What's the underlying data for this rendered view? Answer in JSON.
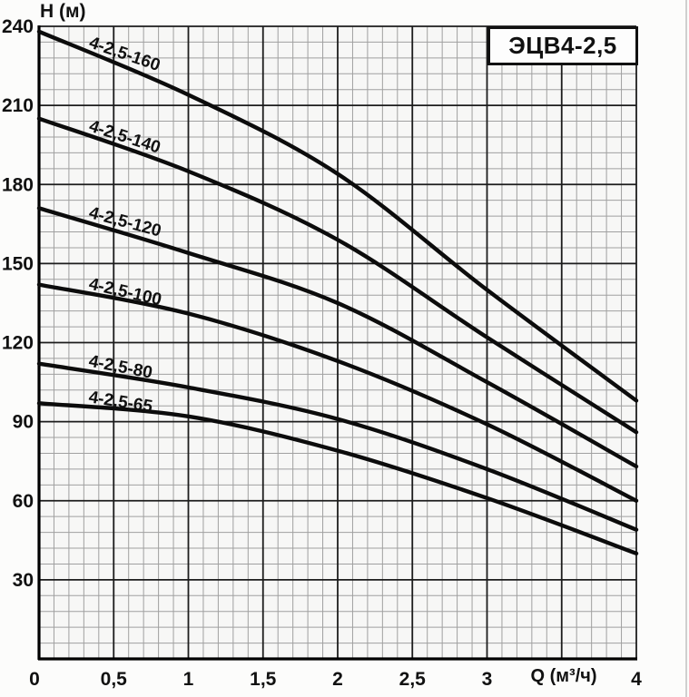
{
  "title_box": {
    "label": "ЭЦВ4-2,5"
  },
  "colors": {
    "curve": "#0c0c0c",
    "grid_minor": "#a0a0a0",
    "grid_major": "#1d1d1d",
    "axis": "#000000",
    "plot_background": "#f7f7f6",
    "text": "#111111"
  },
  "chart_data": {
    "type": "line",
    "title": "ЭЦВ4-2,5",
    "xlabel": "Q (м³/ч)",
    "ylabel": "Н (м)",
    "xlim": [
      0,
      4
    ],
    "ylim": [
      0,
      240
    ],
    "x_major_step": 0.5,
    "y_major_step": 30,
    "x_minor_step": 0.1,
    "y_minor_step": 6,
    "grid": true,
    "legend": "inline-curve-labels",
    "xlabel_at_q": 3.5,
    "x": [
      0,
      1,
      2,
      3,
      4
    ],
    "series": [
      {
        "name": "4-2,5-160",
        "values": [
          238,
          214,
          184,
          140,
          98
        ]
      },
      {
        "name": "4-2,5-140",
        "values": [
          205,
          185,
          159,
          122,
          86
        ]
      },
      {
        "name": "4-2,5-120",
        "values": [
          171,
          154,
          135,
          105,
          73
        ]
      },
      {
        "name": "4-2,5-100",
        "values": [
          142,
          131,
          113,
          89,
          60
        ]
      },
      {
        "name": "4-2,5-80",
        "values": [
          112,
          103,
          91,
          72,
          49
        ]
      },
      {
        "name": "4-2,5-65",
        "values": [
          97,
          92,
          79,
          61,
          40
        ]
      }
    ],
    "y_ticks": [
      {
        "value": 240,
        "label": "240"
      },
      {
        "value": 210,
        "label": "210"
      },
      {
        "value": 180,
        "label": "180"
      },
      {
        "value": 150,
        "label": "150"
      },
      {
        "value": 120,
        "label": "120"
      },
      {
        "value": 90,
        "label": "90"
      },
      {
        "value": 60,
        "label": "60"
      },
      {
        "value": 30,
        "label": "30"
      }
    ],
    "x_ticks": [
      {
        "value": 0,
        "label": "0"
      },
      {
        "value": 0.5,
        "label": "0,5"
      },
      {
        "value": 1,
        "label": "1"
      },
      {
        "value": 1.5,
        "label": "1,5"
      },
      {
        "value": 2,
        "label": "2"
      },
      {
        "value": 2.5,
        "label": "2,5"
      },
      {
        "value": 3,
        "label": "3"
      },
      {
        "value": 4,
        "label": "4"
      }
    ]
  }
}
